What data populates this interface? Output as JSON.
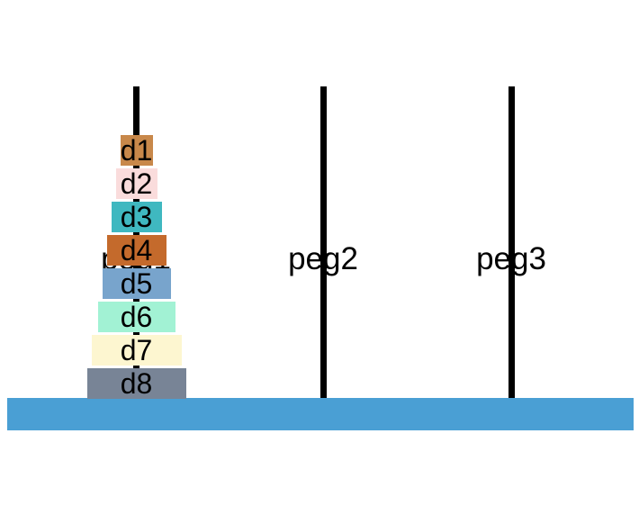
{
  "pegs": [
    {
      "name": "peg1",
      "disks": [
        "d1",
        "d2",
        "d3",
        "d4",
        "d5",
        "d6",
        "d7",
        "d8"
      ]
    },
    {
      "name": "peg2",
      "disks": []
    },
    {
      "name": "peg3",
      "disks": []
    }
  ],
  "disks": {
    "d1": {
      "label": "d1",
      "size": 1,
      "color": "#c8884a"
    },
    "d2": {
      "label": "d2",
      "size": 2,
      "color": "#fadcdc"
    },
    "d3": {
      "label": "d3",
      "size": 3,
      "color": "#3fb8c0"
    },
    "d4": {
      "label": "d4",
      "size": 4,
      "color": "#c46a2c"
    },
    "d5": {
      "label": "d5",
      "size": 5,
      "color": "#78a4cc"
    },
    "d6": {
      "label": "d6",
      "size": 6,
      "color": "#a2f2d4"
    },
    "d7": {
      "label": "d7",
      "size": 7,
      "color": "#fdf6d0"
    },
    "d8": {
      "label": "d8",
      "size": 8,
      "color": "#788496"
    }
  },
  "colors": {
    "base": "#4a9fd4",
    "peg": "#000000"
  }
}
